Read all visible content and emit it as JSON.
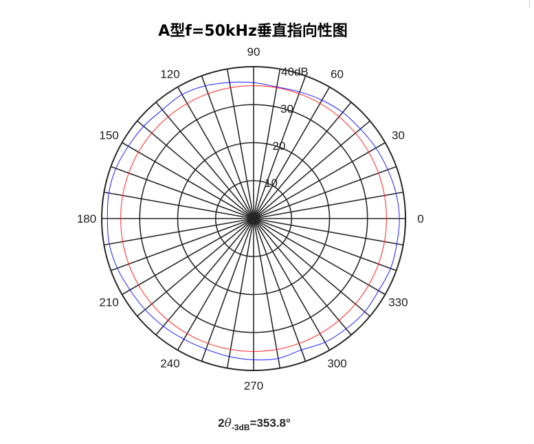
{
  "chart_data": {
    "type": "polar",
    "title": "A型f=50kHz垂直指向性图",
    "angle_ticks": [
      "0",
      "30",
      "60",
      "90",
      "120",
      "150",
      "180",
      "210",
      "240",
      "270",
      "300",
      "330"
    ],
    "spoke_step_deg": 10,
    "r_ticks": [
      "10",
      "20",
      "30",
      "40dB"
    ],
    "rlim": [
      0,
      40
    ],
    "r_tick_values": [
      10,
      20,
      30,
      40
    ],
    "reference_level_db": 35,
    "series": [
      {
        "color": "#1a1aff",
        "theta_deg": [
          0,
          10,
          20,
          30,
          40,
          50,
          60,
          70,
          80,
          90,
          100,
          110,
          120,
          130,
          140,
          150,
          160,
          170,
          180,
          190,
          200,
          210,
          220,
          230,
          240,
          250,
          260,
          270,
          280,
          290,
          300,
          310,
          320,
          330,
          340,
          350
        ],
        "r_db": [
          38.4,
          38.1,
          37.6,
          37.2,
          36.7,
          36.5,
          36.0,
          35.5,
          35.2,
          35.8,
          36.4,
          37.2,
          37.7,
          37.4,
          37.8,
          38.1,
          38.6,
          38.7,
          38.5,
          38.6,
          38.2,
          37.6,
          37.3,
          37.0,
          36.7,
          36.6,
          36.9,
          37.2,
          37.4,
          36.8,
          37.6,
          37.9,
          38.2,
          38.0,
          38.4,
          38.3
        ]
      },
      {
        "color": "#ff2020",
        "theta_deg": [
          0,
          360
        ],
        "r_db": [
          35,
          35
        ]
      }
    ],
    "grid": true,
    "annotation": {
      "prefix": "2",
      "symbol": "θ",
      "subscript": "-3dB",
      "value": "=353.8°"
    }
  },
  "colors": {
    "grid": "#262626",
    "blue_series": "#1a1aff",
    "reference_circle": "#ff2020"
  }
}
